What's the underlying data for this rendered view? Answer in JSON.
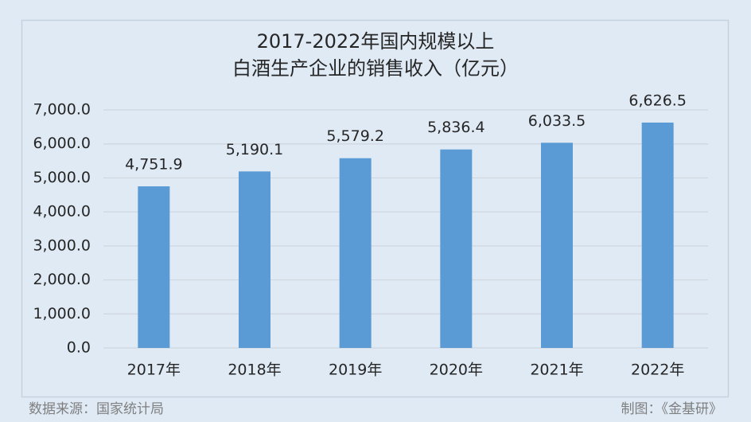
{
  "chart_data": {
    "type": "bar",
    "title": [
      "2017-2022年国内规模以上",
      "白酒生产企业的销售收入（亿元）"
    ],
    "categories": [
      "2017年",
      "2018年",
      "2019年",
      "2020年",
      "2021年",
      "2022年"
    ],
    "values": [
      4751.9,
      5190.1,
      5579.2,
      5836.4,
      6033.5,
      6626.5
    ],
    "value_labels": [
      "4,751.9",
      "5,190.1",
      "5,579.2",
      "5,836.4",
      "6,033.5",
      "6,626.5"
    ],
    "color": "#5b9bd5",
    "ylim": [
      0,
      7000
    ],
    "yticks": [
      {
        "value": 0,
        "label": "0.0"
      },
      {
        "value": 1000,
        "label": "1,000.0"
      },
      {
        "value": 2000,
        "label": "2,000.0"
      },
      {
        "value": 3000,
        "label": "3,000.0"
      },
      {
        "value": 4000,
        "label": "4,000.0"
      },
      {
        "value": 5000,
        "label": "5,000.0"
      },
      {
        "value": 6000,
        "label": "6,000.0"
      },
      {
        "value": 7000,
        "label": "7,000.0"
      }
    ],
    "grid": true
  },
  "footer": {
    "source": "数据来源：国家统计局",
    "credit": "制图：《金基研》"
  }
}
